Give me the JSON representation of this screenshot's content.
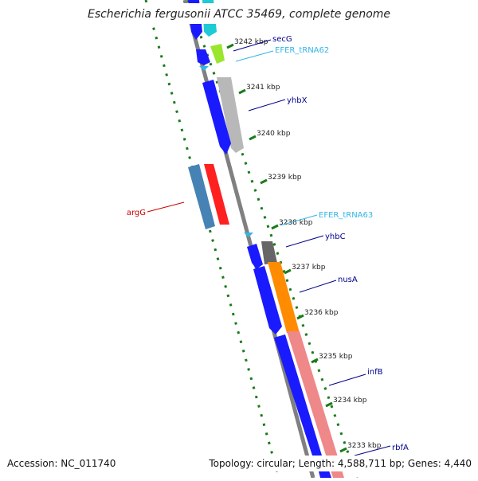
{
  "header": {
    "title": "Escherichia fergusonii ATCC 35469, complete genome"
  },
  "footer": {
    "accession": "Accession: NC_011740",
    "topology": "Topology: circular; Length: 4,588,711 bp; Genes: 4,440"
  },
  "colors": {
    "background": "#ffffff",
    "backbone": "#888888",
    "dotted_track": "#1a7a1a",
    "tick": "#1a7a1a",
    "protein_label": "#00008b",
    "trna_label": "#33b5e5",
    "rrna_label": "#cc0000"
  },
  "ticks": [
    {
      "label": "3242 kbp"
    },
    {
      "label": "3241 kbp"
    },
    {
      "label": "3240 kbp"
    },
    {
      "label": "3239 kbp"
    },
    {
      "label": "3238 kbp"
    },
    {
      "label": "3237 kbp"
    },
    {
      "label": "3236 kbp"
    },
    {
      "label": "3235 kbp"
    },
    {
      "label": "3234 kbp"
    },
    {
      "label": "3233 kbp"
    }
  ],
  "gene_labels": [
    {
      "name": "secG",
      "kind": "protein"
    },
    {
      "name": "EFER_tRNA62",
      "kind": "trna"
    },
    {
      "name": "yhbX",
      "kind": "protein"
    },
    {
      "name": "argG",
      "kind": "rrna"
    },
    {
      "name": "EFER_tRNA63",
      "kind": "trna"
    },
    {
      "name": "yhbC",
      "kind": "protein"
    },
    {
      "name": "nusA",
      "kind": "protein"
    },
    {
      "name": "infB",
      "kind": "protein"
    },
    {
      "name": "rbfA",
      "kind": "protein"
    }
  ]
}
